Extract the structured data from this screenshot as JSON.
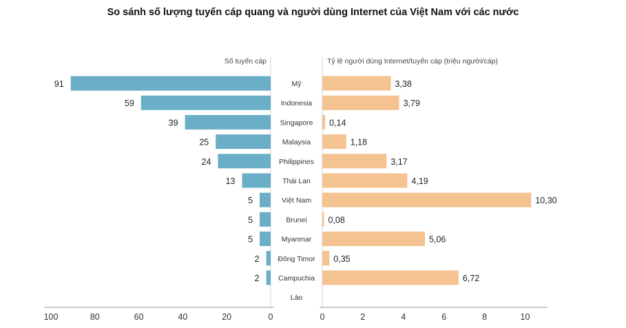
{
  "chart_data": {
    "type": "bar",
    "title": "So sánh số lượng tuyến cáp quang và người dùng Internet của Việt Nam với các nước",
    "categories": [
      "Mỹ",
      "Indonesia",
      "Singapore",
      "Malaysia",
      "Philippines",
      "Thái Lan",
      "Việt Nam",
      "Brunei",
      "Myanmar",
      "Đông Timor",
      "Campuchia",
      "Lào"
    ],
    "series": [
      {
        "name": "Số tuyến cáp",
        "values": [
          91,
          59,
          39,
          25,
          24,
          13,
          5,
          5,
          5,
          2,
          2,
          null
        ],
        "labels": [
          "91",
          "59",
          "39",
          "25",
          "24",
          "13",
          "5",
          "5",
          "5",
          "2",
          "2",
          ""
        ],
        "color": "#6aaec8",
        "xlim": [
          100,
          0
        ],
        "ticks": [
          100,
          80,
          60,
          40,
          20,
          0
        ],
        "tick_labels": [
          "100",
          "80",
          "60",
          "40",
          "20",
          "0"
        ]
      },
      {
        "name": "Tỷ lệ người dùng Internet/tuyến cáp (triệu người/cáp)",
        "values": [
          3.38,
          3.79,
          0.14,
          1.18,
          3.17,
          4.19,
          10.3,
          0.08,
          5.06,
          0.35,
          6.72,
          null
        ],
        "labels": [
          "3,38",
          "3,79",
          "0,14",
          "1,18",
          "3,17",
          "4,19",
          "10,30",
          "0,08",
          "5,06",
          "0,35",
          "6,72",
          ""
        ],
        "color": "#f5c291",
        "xlim": [
          0,
          11
        ],
        "ticks": [
          0,
          2,
          4,
          6,
          8,
          10
        ],
        "tick_labels": [
          "0",
          "2",
          "4",
          "6",
          "8",
          "10"
        ]
      }
    ],
    "legend": "none",
    "grid": false
  }
}
